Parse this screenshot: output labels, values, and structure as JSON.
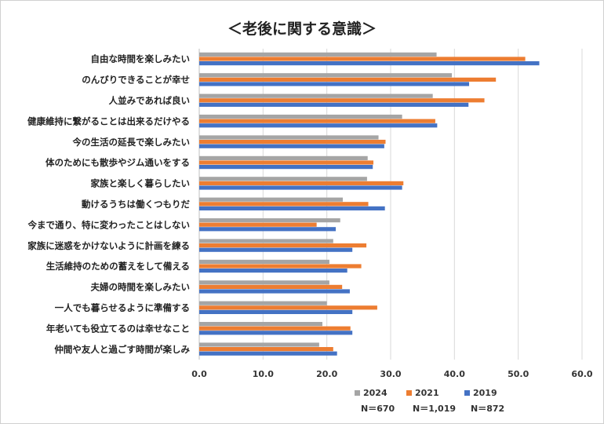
{
  "chart_data": {
    "type": "bar",
    "orientation": "horizontal",
    "title": "＜老後に関する意識＞",
    "xlim": [
      0,
      60
    ],
    "xticks": [
      "0.0",
      "10.0",
      "20.0",
      "30.0",
      "40.0",
      "50.0",
      "60.0"
    ],
    "grid": true,
    "legend_position": "bottom-right",
    "categories": [
      "自由な時間を楽しみたい",
      "のんびりできることが幸せ",
      "人並みであれば良い",
      "健康維持に繋がることは出来るだけやる",
      "今の生活の延長で楽しみたい",
      "体のためにも散歩やジム通いをする",
      "家族と楽しく暮らしたい",
      "動けるうちは働くつもりだ",
      "今まで通り、特に変わったことはしない",
      "家族に迷惑をかけないように計画を練る",
      "生活維持のための蓄えをして備える",
      "夫婦の時間を楽しみたい",
      "一人でも暮らせるように準備する",
      "年老いても役立てるのは幸せなこと",
      "仲間や友人と過ごす時間が楽しみ"
    ],
    "series": [
      {
        "name": "2024",
        "n_label": "N＝670",
        "color": "#a5a5a5",
        "values": [
          37.2,
          39.6,
          36.6,
          31.8,
          28.1,
          26.4,
          26.3,
          22.5,
          22.1,
          21.0,
          20.4,
          20.4,
          20.0,
          19.3,
          18.8
        ]
      },
      {
        "name": "2021",
        "n_label": "N＝1,019",
        "color": "#ed7d31",
        "values": [
          51.1,
          46.5,
          44.7,
          37.0,
          29.2,
          27.3,
          32.0,
          26.5,
          18.4,
          26.2,
          25.4,
          22.4,
          27.9,
          23.7,
          21.0
        ]
      },
      {
        "name": "2019",
        "n_label": "N＝872",
        "color": "#4472c4",
        "values": [
          53.3,
          42.3,
          42.2,
          37.3,
          29.0,
          27.2,
          31.8,
          29.1,
          21.4,
          24.0,
          23.2,
          23.6,
          24.0,
          24.0,
          21.6
        ]
      }
    ]
  }
}
